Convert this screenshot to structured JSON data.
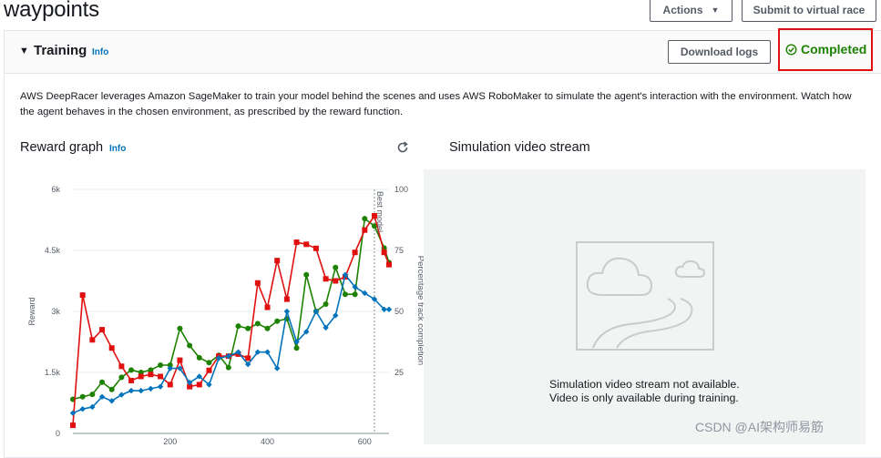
{
  "page": {
    "title": "waypoints"
  },
  "header_buttons": {
    "actions": "Actions",
    "submit": "Submit to virtual race"
  },
  "training": {
    "title": "Training",
    "info": "Info",
    "download": "Download logs",
    "status": "Completed",
    "description": "AWS DeepRacer leverages Amazon SageMaker to train your model behind the scenes and uses AWS RoboMaker to simulate the agent's interaction with the environment. Watch how the agent behaves in the chosen environment, as prescribed by the reward function."
  },
  "reward_graph": {
    "title": "Reward graph",
    "info": "Info"
  },
  "simulation": {
    "title": "Simulation video stream",
    "line1": "Simulation video stream not available.",
    "line2": "Video is only available during training."
  },
  "watermark": "CSDN @AI架构师易筋",
  "colors": {
    "green": "#1d8102",
    "red": "#e01010",
    "blue": "#0073bb",
    "link": "#0073bb"
  },
  "chart_data": {
    "type": "line",
    "ylabel": "Reward",
    "y2label": "Percentage track completion",
    "ylim": [
      0,
      6000
    ],
    "y2lim": [
      0,
      100
    ],
    "yticks": [
      "0",
      "1.5k",
      "3k",
      "4.5k",
      "6k"
    ],
    "y2ticks": [
      "25",
      "50",
      "75",
      "100"
    ],
    "xticks": [
      "200",
      "400",
      "600"
    ],
    "xlim": [
      0,
      650
    ],
    "best_model_x": 620,
    "best_model_label": "Best model",
    "series": [
      {
        "color": "#1d8102",
        "axis": "y2",
        "x": [
          0,
          20,
          40,
          60,
          80,
          100,
          120,
          140,
          160,
          180,
          200,
          220,
          240,
          260,
          280,
          300,
          320,
          340,
          360,
          380,
          400,
          420,
          440,
          460,
          480,
          500,
          520,
          540,
          560,
          580,
          600,
          620,
          640,
          650
        ],
        "values": [
          14,
          15,
          16,
          21,
          18,
          23,
          26,
          25,
          26,
          28,
          28,
          43,
          36,
          31,
          29,
          32,
          27,
          44,
          43,
          45,
          43,
          46,
          47,
          35,
          65,
          50,
          53,
          68,
          57,
          57,
          88,
          85,
          76,
          70
        ]
      },
      {
        "color": "#e01010",
        "axis": "y",
        "x": [
          0,
          20,
          40,
          60,
          80,
          100,
          120,
          140,
          160,
          180,
          200,
          220,
          240,
          260,
          280,
          300,
          320,
          340,
          360,
          380,
          400,
          420,
          440,
          460,
          480,
          500,
          520,
          540,
          560,
          580,
          600,
          620,
          640,
          650
        ],
        "values": [
          200,
          3400,
          2300,
          2550,
          2100,
          1650,
          1300,
          1400,
          1450,
          1400,
          1200,
          1800,
          1150,
          1200,
          1550,
          1900,
          1900,
          1950,
          1850,
          3700,
          3100,
          4250,
          3300,
          4700,
          4650,
          4550,
          3800,
          3750,
          3850,
          4450,
          5000,
          5350,
          4450,
          4150
        ]
      },
      {
        "color": "#0073bb",
        "axis": "y",
        "x": [
          0,
          20,
          40,
          60,
          80,
          100,
          120,
          140,
          160,
          180,
          200,
          220,
          240,
          260,
          280,
          300,
          320,
          340,
          360,
          380,
          400,
          420,
          440,
          460,
          480,
          500,
          520,
          540,
          560,
          580,
          600,
          620,
          640,
          650
        ],
        "values": [
          500,
          600,
          650,
          900,
          800,
          950,
          1050,
          1050,
          1100,
          1150,
          1600,
          1600,
          1250,
          1400,
          1200,
          1850,
          1900,
          2000,
          1700,
          2000,
          2000,
          1600,
          3000,
          2250,
          2500,
          3000,
          2600,
          2900,
          3900,
          3600,
          3450,
          3300,
          3050,
          3050
        ]
      }
    ]
  }
}
